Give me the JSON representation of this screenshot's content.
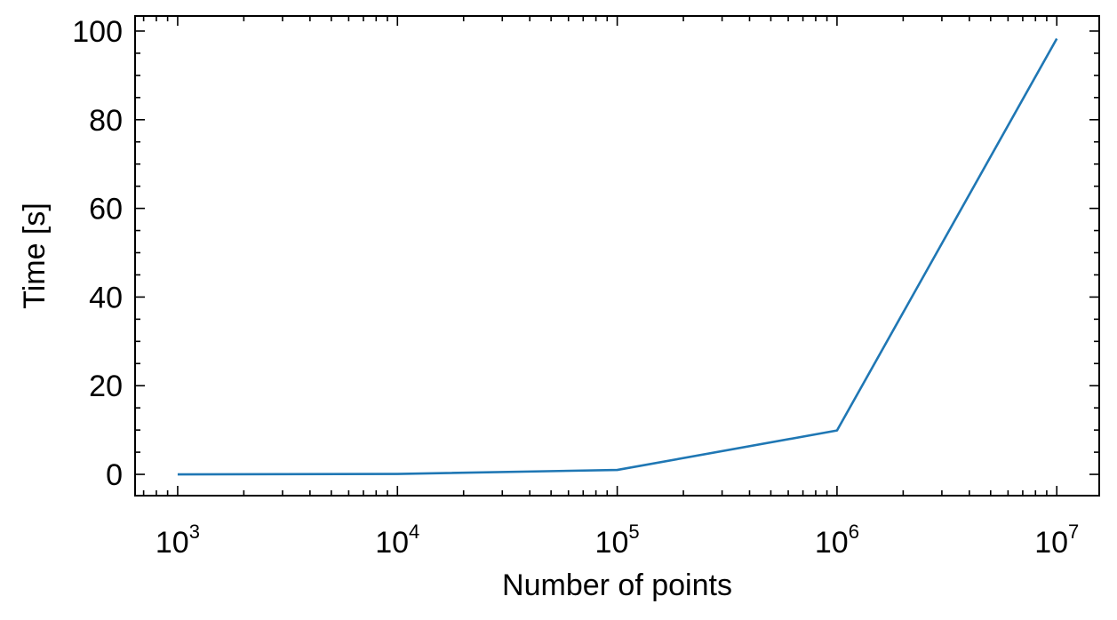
{
  "chart_data": {
    "type": "line",
    "title": "",
    "xlabel": "Number of points",
    "ylabel": "Time [s]",
    "xscale": "log",
    "xlim": [
      640,
      15600000
    ],
    "ylim": [
      -4.8,
      103.4
    ],
    "grid": false,
    "legend": "none",
    "x_ticks": [
      {
        "value": 1000,
        "base": "10",
        "exp": "3"
      },
      {
        "value": 10000,
        "base": "10",
        "exp": "4"
      },
      {
        "value": 100000,
        "base": "10",
        "exp": "5"
      },
      {
        "value": 1000000,
        "base": "10",
        "exp": "6"
      },
      {
        "value": 10000000,
        "base": "10",
        "exp": "7"
      }
    ],
    "y_ticks": [
      {
        "value": 0,
        "label": "0"
      },
      {
        "value": 20,
        "label": "20"
      },
      {
        "value": 40,
        "label": "40"
      },
      {
        "value": 60,
        "label": "60"
      },
      {
        "value": 80,
        "label": "80"
      },
      {
        "value": 100,
        "label": "100"
      }
    ],
    "y_minor_step": 5,
    "series": [
      {
        "color": "#1f77b4",
        "x": [
          1000,
          10000,
          100000,
          1000000,
          10000000
        ],
        "y": [
          0.0,
          0.1,
          1.0,
          9.9,
          98.3
        ]
      }
    ]
  }
}
